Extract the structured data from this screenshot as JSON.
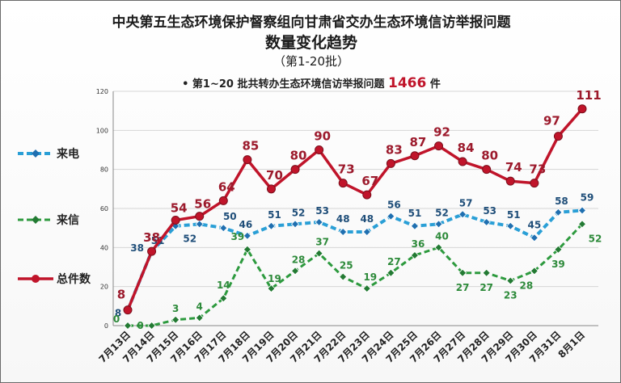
{
  "header": {
    "title_line1": "中央第五生态环境保护督察组向甘肃省交办生态环境信访举报问题",
    "title_line2": "数量变化趋势",
    "title_line3": "（第1-20批）",
    "note_prefix": "• 第1~20 批共转办生态环境信访举报问题",
    "note_total": "1466",
    "note_unit": "件"
  },
  "colors": {
    "phone": "#2a9fd6",
    "letter": "#2d9a3e",
    "total": "#c0142a",
    "phone_label": "#1f4e79",
    "letter_label": "#2d8a3a",
    "total_label": "#9c1a2c",
    "grid": "#d6d6d6"
  },
  "chart_data": {
    "type": "line",
    "categories": [
      "7月13日",
      "7月14日",
      "7月15日",
      "7月16日",
      "7月17日",
      "7月18日",
      "7月19日",
      "7月20日",
      "7月21日",
      "7月22日",
      "7月23日",
      "7月24日",
      "7月25日",
      "7月26日",
      "7月27日",
      "7月28日",
      "7月29日",
      "7月30日",
      "7月31日",
      "8月1日"
    ],
    "series": [
      {
        "name": "来电",
        "style": "dashed",
        "marker": "diamond",
        "values": [
          8,
          38,
          51,
          52,
          50,
          46,
          51,
          52,
          53,
          48,
          48,
          56,
          51,
          52,
          57,
          53,
          51,
          45,
          58,
          59
        ]
      },
      {
        "name": "来信",
        "style": "dashed",
        "marker": "diamond",
        "values": [
          0,
          0,
          3,
          4,
          14,
          39,
          19,
          28,
          37,
          25,
          19,
          27,
          36,
          40,
          27,
          27,
          23,
          28,
          39,
          52
        ]
      },
      {
        "name": "总件数",
        "style": "solid",
        "marker": "circle",
        "values": [
          8,
          38,
          54,
          56,
          64,
          85,
          70,
          80,
          90,
          73,
          67,
          83,
          87,
          92,
          84,
          80,
          74,
          73,
          97,
          111
        ]
      }
    ],
    "ylim": [
      0,
      120
    ],
    "yticks": [
      0,
      20,
      40,
      60,
      80,
      100,
      120
    ],
    "grid": "horizontal",
    "legend": "left"
  }
}
